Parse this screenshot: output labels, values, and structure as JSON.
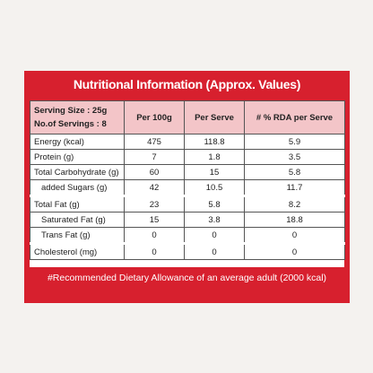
{
  "title": "Nutritional Information (Approx. Values)",
  "header": {
    "serving_size": "Serving Size : 25g",
    "servings": "No.of Servings : 8",
    "columns": [
      "Per 100g",
      "Per Serve",
      "# % RDA per Serve"
    ]
  },
  "table": {
    "rows": [
      [
        "Energy (kcal)",
        "475",
        "118.8",
        "5.9"
      ],
      [
        "Protein (g)",
        "7",
        "1.8",
        "3.5"
      ],
      [
        "Total Carbohydrate (g)",
        "60",
        "15",
        "5.8"
      ],
      [
        "added Sugars (g)",
        "42",
        "10.5",
        "11.7"
      ],
      [
        "Total Fat (g)",
        "23",
        "5.8",
        "8.2"
      ],
      [
        "Saturated Fat (g)",
        "15",
        "3.8",
        "18.8"
      ],
      [
        "Trans Fat (g)",
        "0",
        "0",
        "0"
      ],
      [
        "Cholesterol (mg)",
        "0",
        "0",
        "0"
      ]
    ]
  },
  "footnote": "#Recommended Dietary Allowance of an average adult (2000 kcal)"
}
